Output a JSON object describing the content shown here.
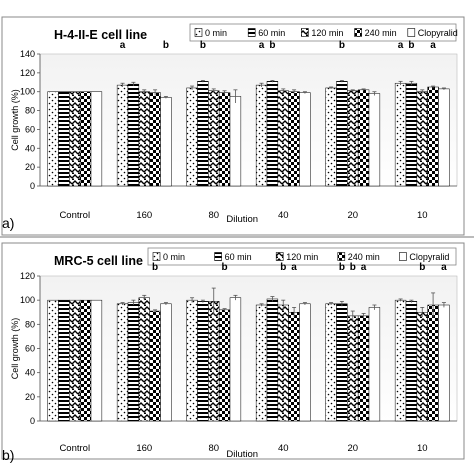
{
  "chart_data": [
    {
      "type": "bar",
      "panel_label": "a)",
      "title": "H-4-II-E cell line",
      "xlabel": "Dilution",
      "ylabel": "Cell growth (%)",
      "ylim": [
        0,
        140
      ],
      "yticks": [
        0,
        20,
        40,
        60,
        80,
        100,
        120,
        140
      ],
      "grid": false,
      "legend_position": "top-right",
      "categories": [
        "Control",
        "160",
        "80",
        "40",
        "20",
        "10"
      ],
      "series": [
        {
          "name": "0 min",
          "values": [
            100,
            107,
            104,
            107,
            104,
            109
          ],
          "errors": [
            0,
            2,
            2,
            2,
            1,
            2
          ]
        },
        {
          "name": "60 min",
          "values": [
            100,
            108,
            111,
            111,
            111,
            109
          ],
          "errors": [
            0,
            2,
            1,
            1,
            1,
            2
          ]
        },
        {
          "name": "120 min",
          "values": [
            100,
            100,
            101,
            101,
            101,
            100
          ],
          "errors": [
            0,
            2,
            2,
            2,
            1,
            2
          ]
        },
        {
          "name": "240 min",
          "values": [
            100,
            99,
            99,
            100,
            102,
            105
          ],
          "errors": [
            0,
            3,
            2,
            2,
            1,
            1
          ]
        },
        {
          "name": "Clopyralid",
          "values": [
            100,
            94,
            95,
            99,
            98,
            103
          ],
          "errors": [
            0,
            1,
            7,
            1,
            2,
            1
          ]
        }
      ],
      "annotations": [
        {
          "category": "160",
          "series": "0 min",
          "text": "a"
        },
        {
          "category": "160",
          "series": "Clopyralid",
          "text": "b"
        },
        {
          "category": "80",
          "series": "60 min",
          "text": "b"
        },
        {
          "category": "40",
          "series": "0 min",
          "text": "a"
        },
        {
          "category": "40",
          "series": "60 min",
          "text": "b"
        },
        {
          "category": "20",
          "series": "60 min",
          "text": "b"
        },
        {
          "category": "10",
          "series": "0 min",
          "text": "a"
        },
        {
          "category": "10",
          "series": "60 min",
          "text": "b"
        },
        {
          "category": "10",
          "series": "240 min",
          "text": "a"
        }
      ]
    },
    {
      "type": "bar",
      "panel_label": "b)",
      "title": "MRC-5 cell line",
      "xlabel": "Dilution",
      "ylabel": "Cell growth (%)",
      "ylim": [
        0,
        120
      ],
      "yticks": [
        0,
        20,
        40,
        60,
        80,
        100,
        120
      ],
      "grid": false,
      "legend_position": "top-right",
      "categories": [
        "Control",
        "160",
        "80",
        "40",
        "20",
        "10"
      ],
      "series": [
        {
          "name": "0 min",
          "values": [
            100,
            97,
            100,
            96,
            97,
            100
          ],
          "errors": [
            0,
            1,
            2,
            1,
            1,
            1
          ]
        },
        {
          "name": "60 min",
          "values": [
            100,
            98,
            99,
            101,
            97,
            99
          ],
          "errors": [
            0,
            2,
            1,
            2,
            2,
            1
          ]
        },
        {
          "name": "120 min",
          "values": [
            100,
            102,
            99,
            96,
            87,
            90
          ],
          "errors": [
            0,
            2,
            11,
            4,
            4,
            4
          ]
        },
        {
          "name": "240 min",
          "values": [
            100,
            91,
            92,
            90,
            87,
            96
          ],
          "errors": [
            0,
            1,
            1,
            4,
            2,
            10
          ]
        },
        {
          "name": "Clopyralid",
          "values": [
            100,
            97,
            102,
            97,
            94,
            96
          ],
          "errors": [
            0,
            1,
            2,
            1,
            2,
            2
          ]
        }
      ],
      "annotations": [
        {
          "category": "160",
          "series": "240 min",
          "text": "b"
        },
        {
          "category": "80",
          "series": "240 min",
          "text": "b"
        },
        {
          "category": "40",
          "series": "120 min",
          "text": "b"
        },
        {
          "category": "40",
          "series": "240 min",
          "text": "a"
        },
        {
          "category": "20",
          "series": "60 min",
          "text": "b"
        },
        {
          "category": "20",
          "series": "120 min",
          "text": "b"
        },
        {
          "category": "20",
          "series": "240 min",
          "text": "a"
        },
        {
          "category": "10",
          "series": "120 min",
          "text": "b"
        },
        {
          "category": "10",
          "series": "Clopyralid",
          "text": "a"
        }
      ]
    }
  ],
  "colors": {
    "bar_edge": "#000000",
    "plot_area_top": "#f4f4f4",
    "plot_area_bottom": "#ffffff",
    "frame": "#888888",
    "axis": "#555555",
    "divider": "#777777"
  }
}
